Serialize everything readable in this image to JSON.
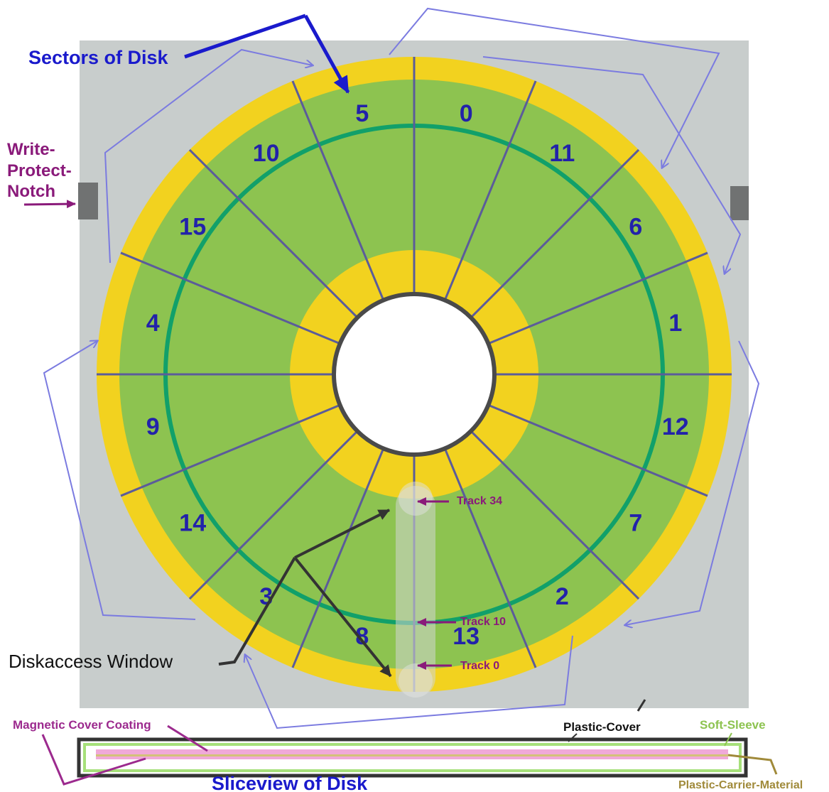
{
  "labels": {
    "sectors_of_disk": "Sectors of Disk",
    "write_protect_1": "Write-",
    "write_protect_2": "Protect-",
    "write_protect_3": "Notch",
    "diskaccess_window": "Diskaccess Window",
    "track_34": "Track 34",
    "track_10": "Track 10",
    "track_0": "Track 0",
    "magnetic_cover_coating": "Magnetic Cover Coating",
    "plastic_cover": "Plastic-Cover",
    "soft_sleeve": "Soft-Sleeve",
    "plastic_carrier_material": "Plastic-Carrier-Material",
    "sliceview_of_disk": "Sliceview of Disk"
  },
  "sectors": [
    "0",
    "11",
    "6",
    "1",
    "12",
    "7",
    "2",
    "13",
    "8",
    "3",
    "14",
    "9",
    "4",
    "15",
    "10",
    "5"
  ],
  "colors": {
    "cover": "#c8cdcc",
    "yellow": "#f2d21f",
    "green": "#8dc350",
    "track_ring": "#11a06a",
    "sector_line": "#5b5c9a",
    "sector_number": "#2222aa",
    "flow_arrow": "#7b7be0",
    "callout_blue": "#1a1acc",
    "callout_purple": "#8a1a7a",
    "soft_sleeve_text": "#8dc350",
    "carrier_text": "#a08a3a"
  }
}
